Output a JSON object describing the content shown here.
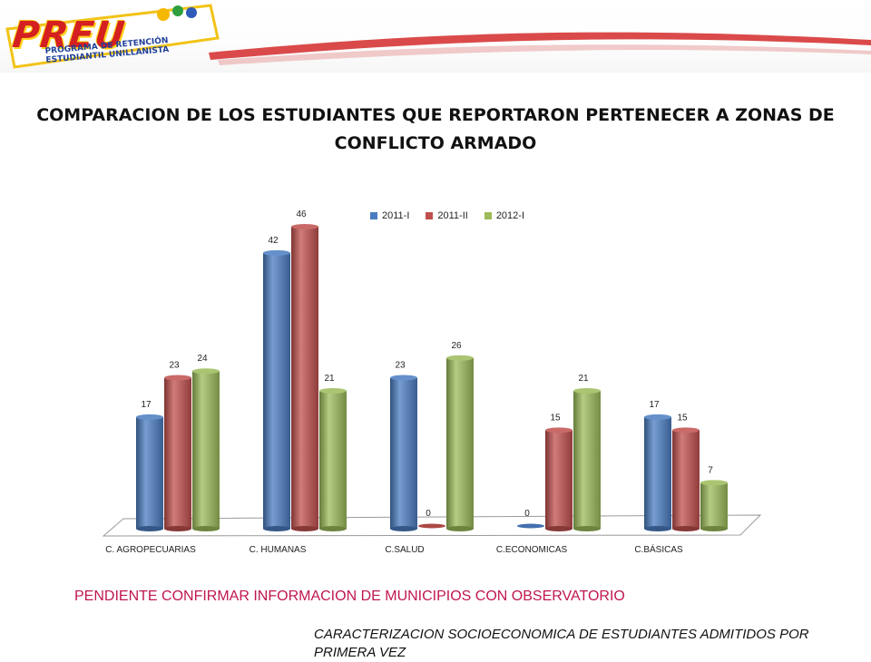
{
  "logo": {
    "word": "PREU",
    "subtitle_line1": "PROGRAMA DE RETENCIÓN",
    "subtitle_line2": "ESTUDIANTIL UNILLANISTA"
  },
  "slide": {
    "title": "COMPARACION DE LOS ESTUDIANTES QUE REPORTARON PERTENECER A ZONAS DE CONFLICTO ARMADO",
    "footer_note": "PENDIENTE CONFIRMAR INFORMACION DE MUNICIPIOS CON OBSERVATORIO",
    "footer_caption": "CARACTERIZACION SOCIOECONOMICA DE ESTUDIANTES ADMITIDOS POR PRIMERA VEZ"
  },
  "chart_data": {
    "type": "bar",
    "style": "3d-cylinder",
    "title": "",
    "xlabel": "",
    "ylabel": "",
    "grid": false,
    "legend_position": "top",
    "ylim": [
      0,
      50
    ],
    "categories": [
      "C. AGROPECUARIAS",
      "C. HUMANAS",
      "C.SALUD",
      "C.ECONOMICAS",
      "C.BÁSICAS"
    ],
    "series": [
      {
        "name": "2011-I",
        "color": "#4a7cc1",
        "values": [
          17,
          42,
          23,
          0,
          17
        ]
      },
      {
        "name": "2011-II",
        "color": "#c0504d",
        "values": [
          23,
          46,
          0,
          15,
          15
        ]
      },
      {
        "name": "2012-I",
        "color": "#9bbb59",
        "values": [
          24,
          21,
          26,
          21,
          7
        ]
      }
    ]
  }
}
